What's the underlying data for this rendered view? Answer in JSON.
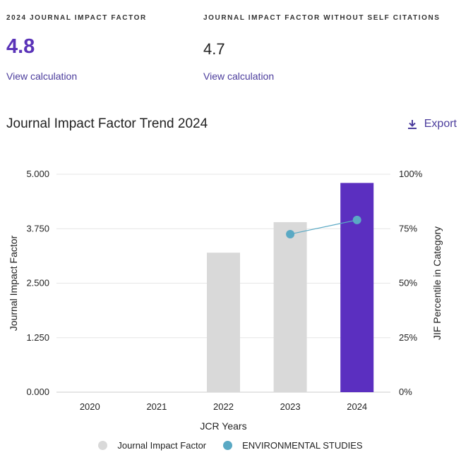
{
  "metrics": {
    "jif": {
      "label": "2024 JOURNAL IMPACT FACTOR",
      "value": "4.8",
      "link": "View calculation"
    },
    "jif_no_self": {
      "label": "JOURNAL IMPACT FACTOR WITHOUT SELF CITATIONS",
      "value": "4.7",
      "link": "View calculation"
    }
  },
  "trend": {
    "title": "Journal Impact Factor Trend 2024",
    "export_label": "Export",
    "export_icon": "download-icon"
  },
  "colors": {
    "accent": "#5a33b8",
    "bar_default": "#d9d9d9",
    "bar_highlight": "#5b2fc0",
    "line": "#5aa9c4",
    "grid": "#e6e6e6"
  },
  "chart_data": {
    "type": "bar",
    "categories": [
      "2020",
      "2021",
      "2022",
      "2023",
      "2024"
    ],
    "series": [
      {
        "name": "Journal Impact Factor",
        "values": [
          null,
          null,
          3.2,
          3.9,
          4.8
        ]
      },
      {
        "name": "ENVIRONMENTAL STUDIES",
        "type": "line",
        "axis": "right",
        "values": [
          null,
          null,
          null,
          72.5,
          79
        ]
      }
    ],
    "xlabel": "JCR Years",
    "ylabel": "Journal Impact Factor",
    "ylabel_right": "JIF Percentile in Category",
    "ylim": [
      0,
      5
    ],
    "ylim_right": [
      0,
      100
    ],
    "yticks": [
      "0.000",
      "1.250",
      "2.500",
      "3.750",
      "5.000"
    ],
    "yticks_right": [
      "0%",
      "25%",
      "50%",
      "75%",
      "100%"
    ],
    "grid": true,
    "legend": "bottom"
  }
}
